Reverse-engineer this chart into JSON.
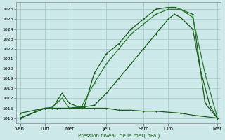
{
  "background_color": "#cce8e8",
  "grid_color": "#aacccc",
  "line_color_dark": "#1a5c1a",
  "line_color_mid": "#2d7a2d",
  "ylabel": "Pression niveau de la mer( hPa )",
  "xlabels": [
    "Ven",
    "Lun",
    "Mer",
    "Jeu",
    "Sam",
    "Dim",
    "Mar"
  ],
  "xtick_positions": [
    0,
    1,
    2,
    3.5,
    5,
    6,
    8
  ],
  "ylim": [
    1014.5,
    1026.7
  ],
  "yticks": [
    1015,
    1016,
    1017,
    1018,
    1019,
    1020,
    1021,
    1022,
    1023,
    1024,
    1025,
    1026
  ],
  "series1_x": [
    0.0,
    1.0,
    1.3,
    1.7,
    2.0,
    2.3,
    2.6,
    3.0,
    3.5,
    4.0,
    4.5,
    5.0,
    5.5,
    6.0,
    6.3,
    6.5,
    7.0,
    7.5,
    8.0
  ],
  "series1_y": [
    1015.0,
    1016.0,
    1016.0,
    1017.5,
    1016.5,
    1016.2,
    1016.1,
    1019.5,
    1021.5,
    1022.5,
    1024.0,
    1025.0,
    1026.0,
    1026.2,
    1026.2,
    1026.0,
    1025.5,
    1016.5,
    1015.0
  ],
  "series2_x": [
    0.0,
    1.0,
    1.3,
    1.7,
    2.0,
    2.5,
    3.0,
    3.5,
    4.0,
    4.5,
    5.0,
    5.5,
    6.0,
    6.5,
    7.0,
    7.5,
    8.0
  ],
  "series2_y": [
    1015.0,
    1016.0,
    1016.1,
    1017.0,
    1016.0,
    1016.2,
    1018.5,
    1020.5,
    1022.0,
    1023.5,
    1024.5,
    1025.5,
    1026.0,
    1026.0,
    1025.2,
    1019.5,
    1015.0
  ],
  "series3_x": [
    0.0,
    1.0,
    1.5,
    2.0,
    2.5,
    3.0,
    3.5,
    4.0,
    4.5,
    5.0,
    5.5,
    6.0,
    6.25,
    6.5,
    7.0,
    7.3,
    7.7,
    8.0
  ],
  "series3_y": [
    1015.0,
    1016.0,
    1016.0,
    1016.0,
    1016.1,
    1016.3,
    1017.5,
    1019.0,
    1020.5,
    1022.0,
    1023.5,
    1025.0,
    1025.5,
    1025.2,
    1024.0,
    1020.0,
    1016.2,
    1015.0
  ],
  "series4_x": [
    0.0,
    1.0,
    1.5,
    2.0,
    2.5,
    3.0,
    3.5,
    4.0,
    4.5,
    5.0,
    5.5,
    6.5,
    7.0,
    8.0
  ],
  "series4_y": [
    1015.5,
    1016.0,
    1016.0,
    1016.0,
    1016.0,
    1016.0,
    1016.0,
    1015.8,
    1015.8,
    1015.7,
    1015.7,
    1015.5,
    1015.3,
    1015.0
  ]
}
